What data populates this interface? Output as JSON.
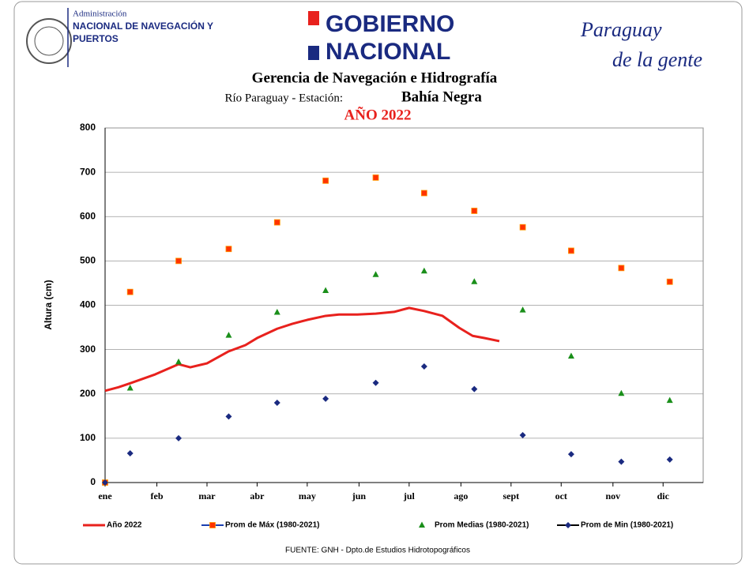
{
  "header": {
    "agency": [
      "Administración",
      "NACIONAL DE NAVEGACIÓN Y",
      "PUERTOS"
    ],
    "government": [
      "GOBIERNO",
      "NACIONAL"
    ],
    "slogan": [
      "Paraguay",
      "de la gente"
    ]
  },
  "chart_data": {
    "type": "scatter",
    "title": "Gerencia de Navegación e Hidrografía",
    "subtitle": "Río Paraguay  -  Estación:",
    "station": "Bahía Negra",
    "year_title": "AÑO 2022",
    "y_label": "Altura (cm)",
    "source": "FUENTE:  GNH  - Dpto.de Estudios Hidrotopográficos",
    "xlim": [
      0,
      358
    ],
    "xticks": [
      {
        "value": 0,
        "label": "ene"
      },
      {
        "value": 31,
        "label": "feb"
      },
      {
        "value": 61,
        "label": "mar"
      },
      {
        "value": 91,
        "label": "abr"
      },
      {
        "value": 121,
        "label": "may"
      },
      {
        "value": 152,
        "label": "jun"
      },
      {
        "value": 182,
        "label": "jul"
      },
      {
        "value": 213,
        "label": "ago"
      },
      {
        "value": 243,
        "label": "sept"
      },
      {
        "value": 273,
        "label": "oct"
      },
      {
        "value": 304,
        "label": "nov"
      },
      {
        "value": 334,
        "label": "dic"
      }
    ],
    "ylim": [
      0,
      800
    ],
    "yticks": [
      0,
      100,
      200,
      300,
      400,
      500,
      600,
      700,
      800
    ],
    "grid": true,
    "series": [
      {
        "name": "Año 2022",
        "color": "#e8211d",
        "marker": "line",
        "x": [
          0,
          8,
          15,
          30,
          44,
          51,
          61,
          74,
          84,
          91,
          103,
          112,
          121,
          132,
          140,
          151,
          162,
          173,
          182,
          191,
          202,
          212,
          220,
          227,
          236
        ],
        "values": [
          207,
          215,
          224,
          244,
          267,
          260,
          269,
          296,
          310,
          326,
          347,
          358,
          367,
          376,
          379,
          379,
          381,
          385,
          394,
          387,
          376,
          349,
          331,
          326,
          319
        ]
      },
      {
        "name": "Prom de Máx (1980-2021)",
        "color": "#ff3300",
        "marker": "square",
        "x": [
          0,
          15,
          44,
          74,
          103,
          132,
          162,
          191,
          221,
          250,
          279,
          309,
          338
        ],
        "values": [
          0,
          430,
          500,
          527,
          587,
          681,
          688,
          653,
          613,
          576,
          523,
          484,
          453
        ]
      },
      {
        "name": "Prom Medias (1980-2021)",
        "color": "#1a8f1a",
        "marker": "triangle",
        "x": [
          15,
          44,
          74,
          103,
          132,
          162,
          191,
          221,
          250,
          279,
          309,
          338
        ],
        "values": [
          213,
          272,
          332,
          384,
          433,
          469,
          477,
          453,
          389,
          285,
          201,
          185
        ]
      },
      {
        "name": "Prom de Min  (1980-2021)",
        "color": "#1a2a80",
        "marker": "diamond",
        "x": [
          0,
          15,
          44,
          74,
          103,
          132,
          162,
          191,
          221,
          250,
          279,
          309,
          338
        ],
        "values": [
          0,
          66,
          100,
          149,
          180,
          189,
          225,
          262,
          211,
          107,
          64,
          47,
          52
        ]
      }
    ]
  }
}
